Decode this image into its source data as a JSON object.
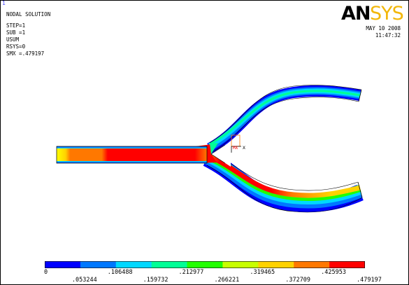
{
  "window": {
    "number": "1"
  },
  "header": {
    "title": "NODAL SOLUTION",
    "lines": [
      "STEP=1",
      "SUB =1",
      "USUM",
      "RSYS=0",
      "SMX =.479197"
    ]
  },
  "logo": {
    "text": "ANSYS",
    "dark_part": "AN",
    "light_part": "SYS",
    "dark_color": "#000000",
    "light_color": "#f2b70a"
  },
  "timestamp": {
    "date": "MAY 10 2008",
    "time": "11:47:32"
  },
  "triad": {
    "label": "X",
    "axis_label": "MX"
  },
  "legend": {
    "colors": [
      "#0000ff",
      "#0078ff",
      "#00d8ff",
      "#00ff96",
      "#22ff00",
      "#c8ff00",
      "#ffd200",
      "#ff7800",
      "#ff0000"
    ],
    "top_labels": [
      "0",
      ".106488",
      ".212977",
      ".319465",
      ".425953"
    ],
    "bottom_labels": [
      ".053244",
      ".159732",
      ".266221",
      ".372709",
      ".479197"
    ]
  }
}
